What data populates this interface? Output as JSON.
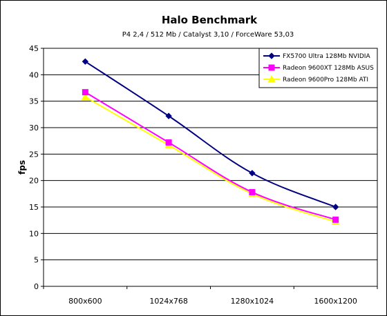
{
  "chart_data": {
    "type": "line",
    "title": "Halo Benchmark",
    "subtitle": "P4 2,4 / 512 Mb / Catalyst 3,10 / ForceWare 53,03",
    "xlabel": "",
    "ylabel": "fps",
    "ylim": [
      0,
      45
    ],
    "yticks": [
      "0",
      "5",
      "10",
      "15",
      "20",
      "25",
      "30",
      "35",
      "40",
      "45"
    ],
    "categories": [
      "800x600",
      "1024x768",
      "1280x1024",
      "1600x1200"
    ],
    "grid": true,
    "legend_position": "top-right",
    "series": [
      {
        "name": "FX5700 Ultra 128Mb NVIDIA",
        "color": "#000080",
        "marker": "diamond",
        "values": [
          42.5,
          32.2,
          21.4,
          15.0
        ]
      },
      {
        "name": "Radeon 9600XT 128Mb ASUS",
        "color": "#ff00ff",
        "marker": "square",
        "values": [
          36.7,
          27.2,
          17.8,
          12.6
        ]
      },
      {
        "name": "Radeon 9600Pro 128Mb ATI",
        "color": "#ffff00",
        "marker": "triangle",
        "values": [
          35.8,
          26.7,
          17.5,
          12.2
        ]
      }
    ]
  }
}
